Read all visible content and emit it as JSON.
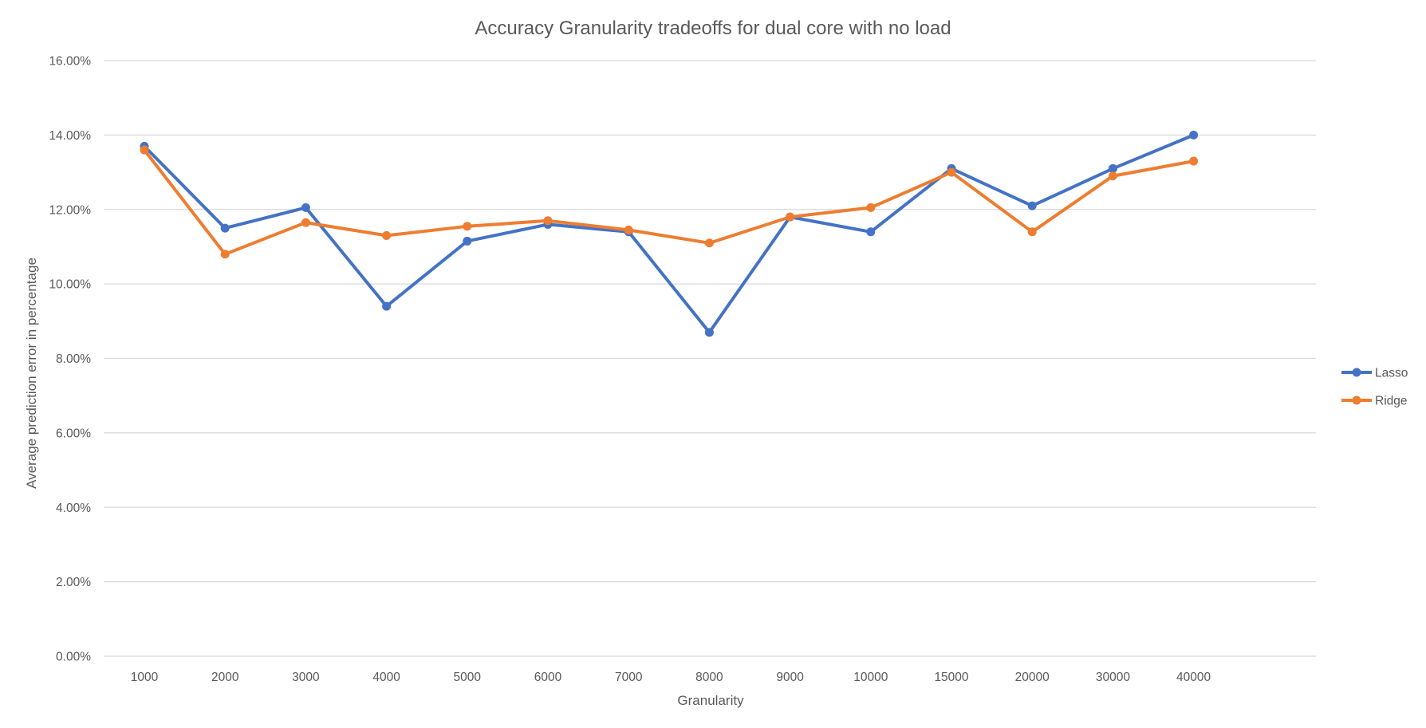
{
  "chart_data": {
    "type": "line",
    "title": "Accuracy Granularity tradeoffs for dual core with no load",
    "xlabel": "Granularity",
    "ylabel": "Average prediction error in percentage",
    "categories": [
      "1000",
      "2000",
      "3000",
      "4000",
      "5000",
      "6000",
      "7000",
      "8000",
      "9000",
      "10000",
      "15000",
      "20000",
      "30000",
      "40000"
    ],
    "ylim": [
      0,
      16
    ],
    "yticks": [
      {
        "value": 0,
        "label": "0.00%"
      },
      {
        "value": 2,
        "label": "2.00%"
      },
      {
        "value": 4,
        "label": "4.00%"
      },
      {
        "value": 6,
        "label": "6.00%"
      },
      {
        "value": 8,
        "label": "8.00%"
      },
      {
        "value": 10,
        "label": "10.00%"
      },
      {
        "value": 12,
        "label": "12.00%"
      },
      {
        "value": 14,
        "label": "14.00%"
      },
      {
        "value": 16,
        "label": "16.00%"
      }
    ],
    "grid": true,
    "legend_position": "right",
    "series": [
      {
        "name": "Lasso",
        "color": "#4472c4",
        "values": [
          13.7,
          11.5,
          12.05,
          9.4,
          11.15,
          11.6,
          11.4,
          8.7,
          11.8,
          11.4,
          13.1,
          12.1,
          13.1,
          14.0
        ]
      },
      {
        "name": "Ridge",
        "color": "#ed7d31",
        "values": [
          13.6,
          10.8,
          11.65,
          11.3,
          11.55,
          11.7,
          11.45,
          11.1,
          11.8,
          12.05,
          13.0,
          11.4,
          12.9,
          13.3
        ]
      }
    ]
  }
}
